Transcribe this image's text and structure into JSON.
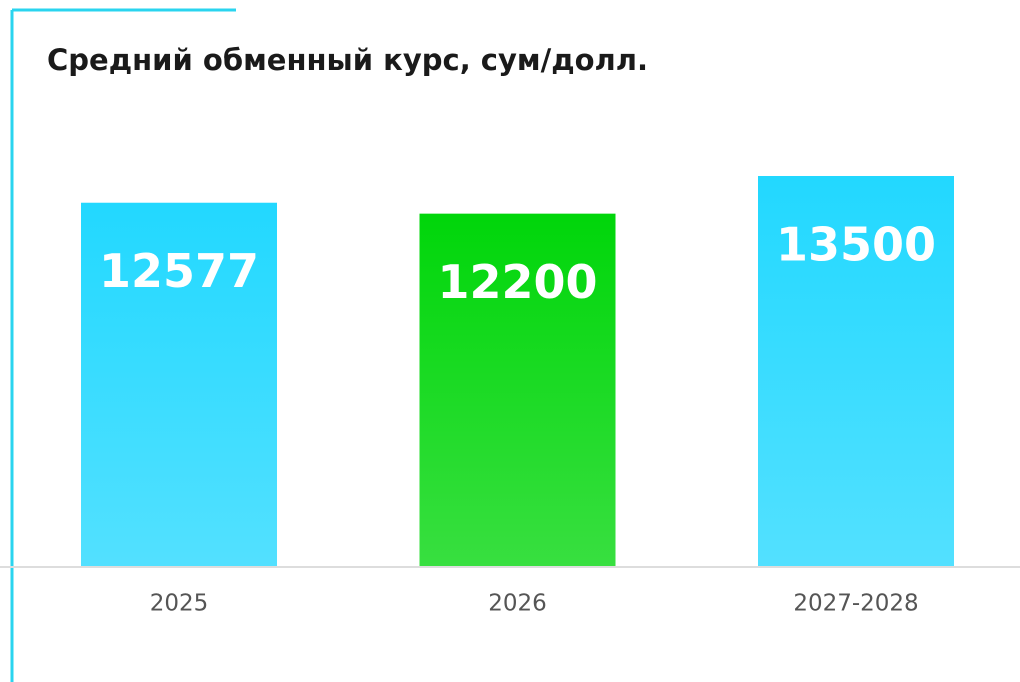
{
  "chart_data": {
    "type": "bar",
    "title": "Средний обменный курс, сум/долл.",
    "categories": [
      "2025",
      "2026",
      "2027-2028"
    ],
    "values": [
      12577,
      12200,
      13500
    ],
    "colors": [
      "#22d8ff",
      "#00d60a",
      "#22d8ff"
    ]
  }
}
